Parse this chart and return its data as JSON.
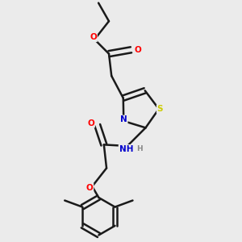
{
  "background_color": "#ebebeb",
  "bond_color": "#1a1a1a",
  "atom_colors": {
    "O": "#ff0000",
    "N": "#0000cd",
    "S": "#cccc00",
    "H": "#888888",
    "C": "#1a1a1a"
  },
  "figsize": [
    3.0,
    3.0
  ],
  "dpi": 100
}
